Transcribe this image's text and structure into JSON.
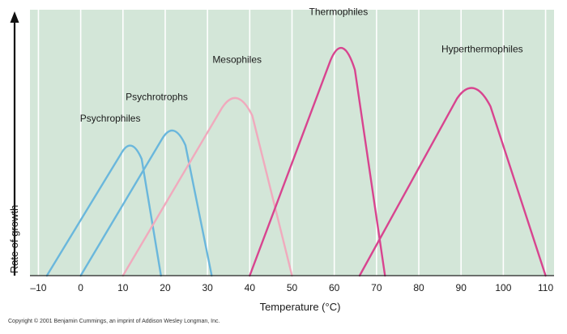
{
  "chart_data": {
    "type": "line",
    "xlabel": "Temperature (°C)",
    "ylabel": "Rate of growth",
    "xlim": [
      -12,
      112
    ],
    "ylim": [
      0,
      100
    ],
    "x_ticks": [
      -10,
      0,
      10,
      20,
      30,
      40,
      50,
      60,
      70,
      80,
      90,
      100,
      110
    ],
    "x_tick_labels": [
      "–10",
      "0",
      "10",
      "20",
      "30",
      "40",
      "50",
      "60",
      "70",
      "80",
      "90",
      "100",
      "110"
    ],
    "grid": "vertical",
    "background_color": "#d3e6d8",
    "series": [
      {
        "name": "Psychrophiles",
        "color": "#6ab7dc",
        "points": [
          [
            -8,
            0
          ],
          [
            12,
            51
          ],
          [
            19,
            0
          ]
        ],
        "label_x": 7,
        "label_y": 58
      },
      {
        "name": "Psychrotrophs",
        "color": "#6ab7dc",
        "points": [
          [
            0,
            0
          ],
          [
            22,
            57
          ],
          [
            31,
            0
          ]
        ],
        "label_x": 18,
        "label_y": 66
      },
      {
        "name": "Mesophiles",
        "color": "#f0aabd",
        "points": [
          [
            10,
            0
          ],
          [
            37,
            70
          ],
          [
            50,
            0
          ]
        ],
        "label_x": 37,
        "label_y": 80
      },
      {
        "name": "Thermophiles",
        "color": "#d8448f",
        "points": [
          [
            40,
            0
          ],
          [
            62,
            90
          ],
          [
            72,
            0
          ]
        ],
        "label_x": 61,
        "label_y": 98
      },
      {
        "name": "Hyperthermophiles",
        "color": "#d8448f",
        "points": [
          [
            66,
            0
          ],
          [
            93,
            74
          ],
          [
            110,
            0
          ]
        ],
        "label_x": 95,
        "label_y": 84
      }
    ]
  },
  "footer": {
    "copyright": "Copyright © 2001 Benjamin Cummings, an imprint of Addison Wesley Longman, Inc."
  }
}
